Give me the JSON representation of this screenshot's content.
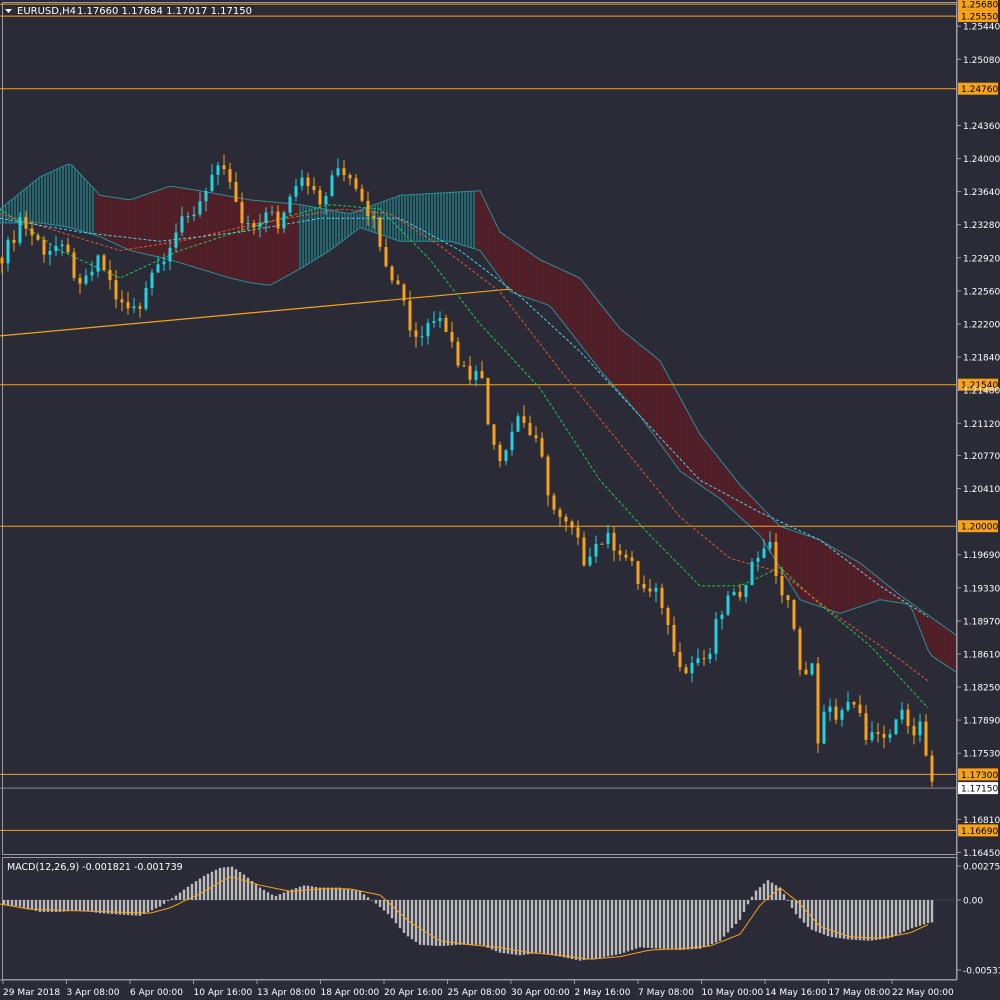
{
  "header": {
    "symbol": "EURUSD,H4",
    "ohlc": "1.17660 1.17684 1.17017 1.17150"
  },
  "macd_label": "MACD(12,26,9) -0.001821 -0.001739",
  "colors": {
    "background": "#2a2b37",
    "bull": "#1fd3e0",
    "bear": "#f7a21b",
    "level": "#f7a21b",
    "cloud_bear": "#8b0f12",
    "cloud_bull": "#1f8f96",
    "ma_fast": "#22c94a",
    "ma_mid": "#e8562a",
    "ma_slow": "#4fd1e6",
    "macd_hist": "#bdbdbd",
    "macd_signal": "#f7a21b"
  },
  "chart_data": {
    "type": "candlestick",
    "price_axis": {
      "ylim": [
        1.1641,
        1.2571
      ],
      "ticks": [
        "1.25440",
        "1.25080",
        "1.24360",
        "1.24000",
        "1.23640",
        "1.23280",
        "1.22920",
        "1.22560",
        "1.22200",
        "1.21840",
        "1.21480",
        "1.21120",
        "1.20770",
        "1.20410",
        "1.19690",
        "1.19330",
        "1.18970",
        "1.18610",
        "1.18250",
        "1.17890",
        "1.17530",
        "1.16810",
        "1.16450"
      ]
    },
    "time_axis": [
      "29 Mar 2018",
      "3 Apr 08:00",
      "6 Apr 00:00",
      "10 Apr 16:00",
      "13 Apr 08:00",
      "18 Apr 00:00",
      "20 Apr 16:00",
      "25 Apr 08:00",
      "30 Apr 00:00",
      "2 May 16:00",
      "7 May 08:00",
      "10 May 00:00",
      "14 May 16:00",
      "17 May 08:00",
      "22 May 00:00"
    ],
    "levels": [
      "1.25680",
      "1.25550",
      "1.24760",
      "1.21540",
      "1.20000",
      "1.17300",
      "1.16690"
    ],
    "current_price": "1.17150",
    "trendline": [
      [
        0,
        1.2207
      ],
      [
        510,
        1.2258
      ]
    ],
    "close_path": [
      [
        0,
        1.2292
      ],
      [
        12,
        1.231
      ],
      [
        20,
        1.2335
      ],
      [
        30,
        1.232
      ],
      [
        45,
        1.23
      ],
      [
        55,
        1.2305
      ],
      [
        70,
        1.229
      ],
      [
        80,
        1.2255
      ],
      [
        90,
        1.2275
      ],
      [
        100,
        1.229
      ],
      [
        110,
        1.2265
      ],
      [
        120,
        1.224
      ],
      [
        130,
        1.2235
      ],
      [
        140,
        1.2238
      ],
      [
        148,
        1.2275
      ],
      [
        158,
        1.2285
      ],
      [
        168,
        1.2305
      ],
      [
        178,
        1.2325
      ],
      [
        190,
        1.2335
      ],
      [
        200,
        1.2355
      ],
      [
        210,
        1.238
      ],
      [
        220,
        1.2385
      ],
      [
        230,
        1.2375
      ],
      [
        240,
        1.233
      ],
      [
        250,
        1.232
      ],
      [
        260,
        1.2335
      ],
      [
        270,
        1.234
      ],
      [
        280,
        1.2325
      ],
      [
        290,
        1.2365
      ],
      [
        300,
        1.2385
      ],
      [
        310,
        1.2375
      ],
      [
        318,
        1.2345
      ],
      [
        328,
        1.2365
      ],
      [
        338,
        1.239
      ],
      [
        348,
        1.2385
      ],
      [
        358,
        1.237
      ],
      [
        368,
        1.2345
      ],
      [
        378,
        1.232
      ],
      [
        386,
        1.229
      ],
      [
        396,
        1.2265
      ],
      [
        404,
        1.225
      ],
      [
        410,
        1.2215
      ],
      [
        420,
        1.2205
      ],
      [
        430,
        1.2225
      ],
      [
        440,
        1.2235
      ],
      [
        450,
        1.2205
      ],
      [
        460,
        1.2175
      ],
      [
        470,
        1.2165
      ],
      [
        480,
        1.2185
      ],
      [
        485,
        1.2115
      ],
      [
        490,
        1.211
      ],
      [
        500,
        1.2075
      ],
      [
        510,
        1.21
      ],
      [
        520,
        1.2125
      ],
      [
        530,
        1.21
      ],
      [
        540,
        1.208
      ],
      [
        548,
        1.204
      ],
      [
        556,
        1.201
      ],
      [
        566,
        1.2
      ],
      [
        576,
        1.199
      ],
      [
        582,
        1.196
      ],
      [
        590,
        1.1975
      ],
      [
        600,
        1.1985
      ],
      [
        610,
        1.1985
      ],
      [
        620,
        1.1975
      ],
      [
        630,
        1.196
      ],
      [
        640,
        1.1935
      ],
      [
        650,
        1.1925
      ],
      [
        660,
        1.1925
      ],
      [
        668,
        1.189
      ],
      [
        676,
        1.1865
      ],
      [
        686,
        1.184
      ],
      [
        696,
        1.186
      ],
      [
        706,
        1.1845
      ],
      [
        716,
        1.189
      ],
      [
        726,
        1.192
      ],
      [
        736,
        1.192
      ],
      [
        746,
        1.1945
      ],
      [
        756,
        1.1965
      ],
      [
        766,
        1.1985
      ],
      [
        772,
        1.197
      ],
      [
        780,
        1.193
      ],
      [
        790,
        1.191
      ],
      [
        796,
        1.187
      ],
      [
        804,
        1.1835
      ],
      [
        812,
        1.1845
      ],
      [
        818,
        1.177
      ],
      [
        826,
        1.18
      ],
      [
        836,
        1.1795
      ],
      [
        846,
        1.1805
      ],
      [
        856,
        1.18
      ],
      [
        866,
        1.1775
      ],
      [
        876,
        1.177
      ],
      [
        886,
        1.176
      ],
      [
        896,
        1.179
      ],
      [
        906,
        1.1795
      ],
      [
        914,
        1.178
      ],
      [
        922,
        1.1785
      ],
      [
        930,
        1.1715
      ]
    ],
    "ma_fast": [
      [
        0,
        1.2345
      ],
      [
        60,
        1.23
      ],
      [
        120,
        1.227
      ],
      [
        180,
        1.23
      ],
      [
        250,
        1.2325
      ],
      [
        330,
        1.235
      ],
      [
        380,
        1.2345
      ],
      [
        430,
        1.229
      ],
      [
        480,
        1.222
      ],
      [
        540,
        1.215
      ],
      [
        600,
        1.205
      ],
      [
        650,
        1.199
      ],
      [
        700,
        1.1935
      ],
      [
        740,
        1.1935
      ],
      [
        780,
        1.1955
      ],
      [
        820,
        1.1915
      ],
      [
        870,
        1.187
      ],
      [
        930,
        1.18
      ]
    ],
    "ma_mid": [
      [
        0,
        1.234
      ],
      [
        60,
        1.232
      ],
      [
        120,
        1.23
      ],
      [
        180,
        1.231
      ],
      [
        260,
        1.233
      ],
      [
        340,
        1.2345
      ],
      [
        390,
        1.234
      ],
      [
        440,
        1.2305
      ],
      [
        500,
        1.2255
      ],
      [
        560,
        1.217
      ],
      [
        620,
        1.209
      ],
      [
        680,
        1.201
      ],
      [
        730,
        1.1965
      ],
      [
        780,
        1.195
      ],
      [
        840,
        1.19
      ],
      [
        900,
        1.1855
      ],
      [
        930,
        1.183
      ]
    ],
    "ma_slow": [
      [
        0,
        1.2335
      ],
      [
        80,
        1.232
      ],
      [
        160,
        1.231
      ],
      [
        240,
        1.232
      ],
      [
        320,
        1.2335
      ],
      [
        400,
        1.2335
      ],
      [
        460,
        1.23
      ],
      [
        520,
        1.225
      ],
      [
        580,
        1.219
      ],
      [
        640,
        1.212
      ],
      [
        700,
        1.205
      ],
      [
        760,
        1.2015
      ],
      [
        820,
        1.1985
      ],
      [
        880,
        1.1935
      ],
      [
        930,
        1.19
      ]
    ],
    "cloud_upper": [
      [
        0,
        1.2345
      ],
      [
        40,
        1.238
      ],
      [
        70,
        1.2395
      ],
      [
        100,
        1.236
      ],
      [
        130,
        1.2355
      ],
      [
        170,
        1.237
      ],
      [
        200,
        1.2365
      ],
      [
        250,
        1.2355
      ],
      [
        300,
        1.235
      ],
      [
        350,
        1.234
      ],
      [
        400,
        1.236
      ],
      [
        480,
        1.2365
      ],
      [
        500,
        1.232
      ],
      [
        540,
        1.229
      ],
      [
        580,
        1.227
      ],
      [
        620,
        1.2215
      ],
      [
        660,
        1.218
      ],
      [
        700,
        1.21
      ],
      [
        740,
        1.2045
      ],
      [
        780,
        1.2
      ],
      [
        820,
        1.1985
      ],
      [
        860,
        1.196
      ],
      [
        900,
        1.1925
      ],
      [
        958,
        1.188
      ]
    ],
    "cloud_lower": [
      [
        0,
        1.233
      ],
      [
        40,
        1.233
      ],
      [
        70,
        1.2325
      ],
      [
        100,
        1.2315
      ],
      [
        130,
        1.23
      ],
      [
        170,
        1.229
      ],
      [
        200,
        1.228
      ],
      [
        230,
        1.227
      ],
      [
        250,
        1.2265
      ],
      [
        270,
        1.2262
      ],
      [
        300,
        1.228
      ],
      [
        330,
        1.23
      ],
      [
        360,
        1.2325
      ],
      [
        400,
        1.231
      ],
      [
        450,
        1.231
      ],
      [
        480,
        1.23
      ],
      [
        510,
        1.2255
      ],
      [
        550,
        1.224
      ],
      [
        600,
        1.217
      ],
      [
        640,
        1.212
      ],
      [
        680,
        1.206
      ],
      [
        720,
        1.203
      ],
      [
        760,
        1.199
      ],
      [
        800,
        1.192
      ],
      [
        840,
        1.1905
      ],
      [
        880,
        1.192
      ],
      [
        910,
        1.1915
      ],
      [
        930,
        1.186
      ],
      [
        958,
        1.184
      ]
    ],
    "macd_axis": {
      "ylim": [
        -0.00531,
        0.00275
      ],
      "ticks": [
        "0.002751",
        "0.00",
        "-0.005314"
      ]
    },
    "macd_hist": [
      [
        0,
        -0.0003
      ],
      [
        20,
        -0.0005
      ],
      [
        40,
        -0.0009
      ],
      [
        60,
        -0.0009
      ],
      [
        80,
        -0.0008
      ],
      [
        100,
        -0.001
      ],
      [
        120,
        -0.0011
      ],
      [
        140,
        -0.0012
      ],
      [
        160,
        -0.0005
      ],
      [
        175,
        0.0003
      ],
      [
        190,
        0.0012
      ],
      [
        205,
        0.002
      ],
      [
        220,
        0.0026
      ],
      [
        232,
        0.0027
      ],
      [
        245,
        0.002
      ],
      [
        260,
        0.001
      ],
      [
        275,
        0.0003
      ],
      [
        290,
        0.0008
      ],
      [
        305,
        0.0012
      ],
      [
        320,
        0.001
      ],
      [
        340,
        0.001
      ],
      [
        360,
        0.0007
      ],
      [
        375,
        -0.0002
      ],
      [
        390,
        -0.0012
      ],
      [
        405,
        -0.0026
      ],
      [
        420,
        -0.0034
      ],
      [
        440,
        -0.0035
      ],
      [
        460,
        -0.0034
      ],
      [
        480,
        -0.0034
      ],
      [
        500,
        -0.004
      ],
      [
        520,
        -0.0042
      ],
      [
        540,
        -0.004
      ],
      [
        560,
        -0.0043
      ],
      [
        580,
        -0.0046
      ],
      [
        600,
        -0.0044
      ],
      [
        620,
        -0.0041
      ],
      [
        640,
        -0.0036
      ],
      [
        660,
        -0.0037
      ],
      [
        680,
        -0.0038
      ],
      [
        700,
        -0.0037
      ],
      [
        720,
        -0.0031
      ],
      [
        740,
        -0.0015
      ],
      [
        755,
        0.0007
      ],
      [
        768,
        0.0016
      ],
      [
        780,
        0.001
      ],
      [
        795,
        -0.001
      ],
      [
        810,
        -0.0022
      ],
      [
        830,
        -0.0028
      ],
      [
        850,
        -0.003
      ],
      [
        870,
        -0.0031
      ],
      [
        890,
        -0.0029
      ],
      [
        910,
        -0.0022
      ],
      [
        930,
        -0.0017
      ]
    ],
    "macd_signal": [
      [
        0,
        -0.0003
      ],
      [
        30,
        -0.0007
      ],
      [
        70,
        -0.0008
      ],
      [
        110,
        -0.0009
      ],
      [
        150,
        -0.001
      ],
      [
        170,
        -0.0006
      ],
      [
        200,
        0.0005
      ],
      [
        230,
        0.0019
      ],
      [
        260,
        0.0012
      ],
      [
        290,
        0.0007
      ],
      [
        320,
        0.0009
      ],
      [
        350,
        0.0009
      ],
      [
        380,
        0.0004
      ],
      [
        410,
        -0.0017
      ],
      [
        440,
        -0.0031
      ],
      [
        470,
        -0.0034
      ],
      [
        500,
        -0.0036
      ],
      [
        530,
        -0.004
      ],
      [
        560,
        -0.0042
      ],
      [
        590,
        -0.0045
      ],
      [
        620,
        -0.0043
      ],
      [
        650,
        -0.0038
      ],
      [
        680,
        -0.0037
      ],
      [
        710,
        -0.0035
      ],
      [
        740,
        -0.0026
      ],
      [
        760,
        -0.0004
      ],
      [
        780,
        0.001
      ],
      [
        800,
        -0.0003
      ],
      [
        820,
        -0.002
      ],
      [
        850,
        -0.0028
      ],
      [
        880,
        -0.0029
      ],
      [
        910,
        -0.0025
      ],
      [
        930,
        -0.0018
      ]
    ]
  }
}
